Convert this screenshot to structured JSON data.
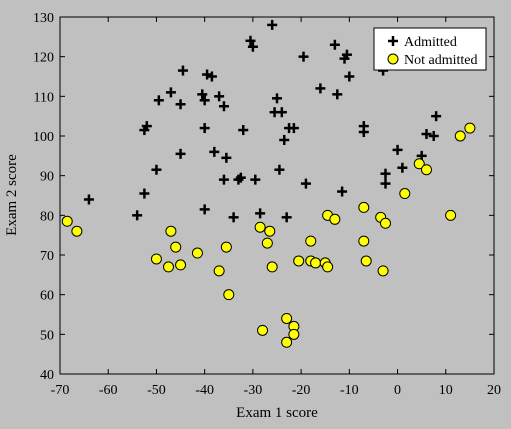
{
  "chart_data": {
    "type": "scatter",
    "title": "",
    "xlabel": "Exam 1 score",
    "ylabel": "Exam 2 score",
    "xlim": [
      -70,
      20
    ],
    "ylim": [
      40,
      130
    ],
    "xticks": [
      -70,
      -60,
      -50,
      -40,
      -30,
      -20,
      -10,
      0,
      10,
      20
    ],
    "yticks": [
      40,
      50,
      60,
      70,
      80,
      90,
      100,
      110,
      120,
      130
    ],
    "grid": false,
    "legend_position": "top-right",
    "series": [
      {
        "name": "Admitted",
        "marker": "plus",
        "color": "#000000",
        "points": [
          [
            -64,
            84
          ],
          [
            -54,
            80
          ],
          [
            -52.5,
            85.5
          ],
          [
            -52.5,
            101.5
          ],
          [
            -52,
            102.5
          ],
          [
            -50,
            91.5
          ],
          [
            -49.5,
            109
          ],
          [
            -47,
            111
          ],
          [
            -45,
            108
          ],
          [
            -45,
            95.5
          ],
          [
            -44.5,
            116.5
          ],
          [
            -40.5,
            110.5
          ],
          [
            -40,
            109
          ],
          [
            -40,
            102
          ],
          [
            -40,
            81.5
          ],
          [
            -39.5,
            115.5
          ],
          [
            -38.5,
            115
          ],
          [
            -38,
            96
          ],
          [
            -37,
            110
          ],
          [
            -36,
            107.5
          ],
          [
            -36,
            89
          ],
          [
            -35.5,
            94.5
          ],
          [
            -34,
            79.5
          ],
          [
            -33,
            89
          ],
          [
            -32.5,
            89.5
          ],
          [
            -32,
            101.5
          ],
          [
            -30.5,
            124
          ],
          [
            -30,
            122.5
          ],
          [
            -29.5,
            89
          ],
          [
            -28.5,
            80.5
          ],
          [
            -26,
            128
          ],
          [
            -25.5,
            106
          ],
          [
            -25,
            109.5
          ],
          [
            -24.5,
            91.5
          ],
          [
            -24,
            106
          ],
          [
            -23.5,
            99
          ],
          [
            -23,
            79.5
          ],
          [
            -22.5,
            102
          ],
          [
            -21.5,
            102
          ],
          [
            -19.5,
            120
          ],
          [
            -19,
            88
          ],
          [
            -16,
            112
          ],
          [
            -13,
            123
          ],
          [
            -12.5,
            110.5
          ],
          [
            -11.5,
            86
          ],
          [
            -11,
            119.5
          ],
          [
            -10.5,
            120.5
          ],
          [
            -10,
            115
          ],
          [
            -3,
            116.5
          ],
          [
            -2.5,
            88
          ],
          [
            -2.5,
            90.5
          ],
          [
            -7,
            102.5
          ],
          [
            -7,
            101
          ],
          [
            0,
            96.5
          ],
          [
            1,
            92
          ],
          [
            5,
            95
          ],
          [
            6,
            100.5
          ],
          [
            7.5,
            100
          ],
          [
            8,
            105
          ]
        ]
      },
      {
        "name": "Not admitted",
        "marker": "circle",
        "color": "#ffff00",
        "points": [
          [
            -68.5,
            78.5
          ],
          [
            -66.5,
            76
          ],
          [
            -50,
            69
          ],
          [
            -47.5,
            67
          ],
          [
            -47,
            76
          ],
          [
            -46,
            72
          ],
          [
            -45,
            67.5
          ],
          [
            -41.5,
            70.5
          ],
          [
            -37,
            66
          ],
          [
            -35.5,
            72
          ],
          [
            -35,
            60
          ],
          [
            -28.5,
            77
          ],
          [
            -28,
            51
          ],
          [
            -27,
            73
          ],
          [
            -26.5,
            76
          ],
          [
            -26,
            67
          ],
          [
            -23,
            54
          ],
          [
            -23,
            48
          ],
          [
            -21.5,
            52
          ],
          [
            -21.5,
            50
          ],
          [
            -20.5,
            68.5
          ],
          [
            -18,
            73.5
          ],
          [
            -18,
            68.5
          ],
          [
            -17,
            68
          ],
          [
            -15,
            68
          ],
          [
            -14.5,
            67
          ],
          [
            -14.5,
            80
          ],
          [
            -13,
            79
          ],
          [
            -7,
            82
          ],
          [
            -7,
            73.5
          ],
          [
            -6.5,
            68.5
          ],
          [
            -3.5,
            79.5
          ],
          [
            -3,
            66
          ],
          [
            -2.5,
            78
          ],
          [
            1.5,
            85.5
          ],
          [
            4.5,
            93
          ],
          [
            6,
            91.5
          ],
          [
            11,
            80
          ],
          [
            13,
            100
          ],
          [
            15,
            102
          ]
        ]
      }
    ]
  }
}
